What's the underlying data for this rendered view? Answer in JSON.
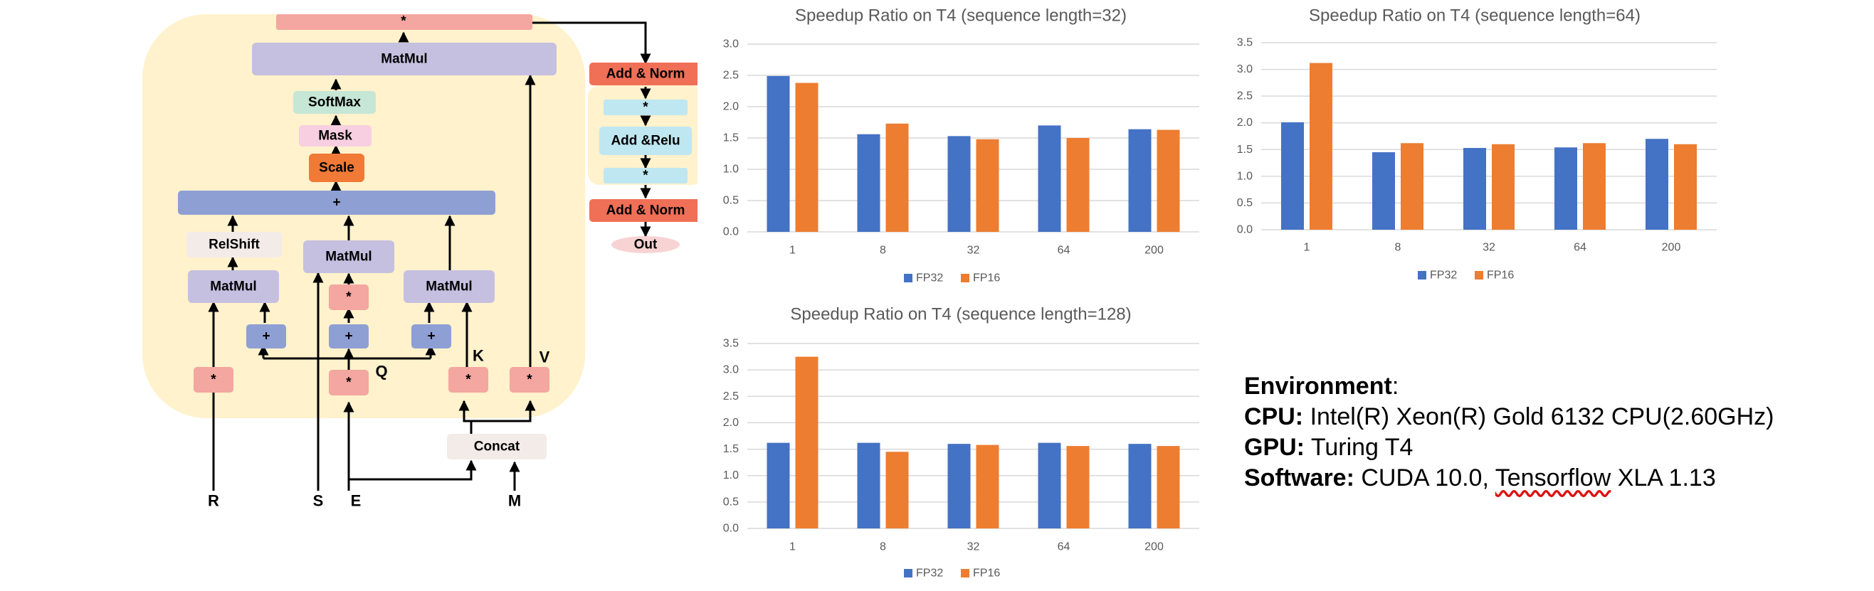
{
  "diagram": {
    "nodes": {
      "top_mul": "*",
      "matmul_top": "MatMul",
      "softmax": "SoftMax",
      "mask": "Mask",
      "scale": "Scale",
      "plus_wide": "+",
      "relshift": "RelShift",
      "matmul_left": "MatMul",
      "matmul_mid": "MatMul",
      "matmul_right": "MatMul",
      "mul_mid": "*",
      "plus_1": "+",
      "plus_2": "+",
      "plus_3": "+",
      "mul_r": "*",
      "mul_e": "*",
      "mul_k": "*",
      "mul_v": "*",
      "concat": "Concat",
      "add_norm_1": "Add & Norm",
      "ff_mul_1": "*",
      "add_relu": "Add &Relu",
      "ff_mul_2": "*",
      "add_norm_2": "Add & Norm",
      "out": "Out"
    },
    "labels": {
      "q": "Q",
      "k": "K",
      "v": "V",
      "r": "R",
      "s": "S",
      "e": "E",
      "m": "M"
    },
    "colors": {
      "panel": "#fff2cc",
      "matmul": "#c5c0e0",
      "plus": "#8e9fd4",
      "pink": "#f4a6a0",
      "softmax": "#c6e6d6",
      "mask": "#f7cfe1",
      "scale": "#f07a36",
      "addnorm": "#f06f57",
      "cyan": "#bfe7f1",
      "grey": "#f3ebe8",
      "out": "#f7d3d3"
    }
  },
  "chart_data": [
    {
      "type": "bar",
      "title": "Speedup Ratio on T4 (sequence length=32)",
      "categories": [
        "1",
        "8",
        "32",
        "64",
        "200"
      ],
      "yticks": [
        "0.0",
        "0.5",
        "1.0",
        "1.5",
        "2.0",
        "2.5",
        "3.0"
      ],
      "ylim": [
        0,
        3.0
      ],
      "grid": true,
      "legend_position": "bottom",
      "series": [
        {
          "name": "FP32",
          "color": "#4472c4",
          "values": [
            2.49,
            1.56,
            1.53,
            1.7,
            1.64
          ]
        },
        {
          "name": "FP16",
          "color": "#ed7d31",
          "values": [
            2.38,
            1.73,
            1.48,
            1.5,
            1.63
          ]
        }
      ]
    },
    {
      "type": "bar",
      "title": "Speedup Ratio on T4 (sequence length=64)",
      "categories": [
        "1",
        "8",
        "32",
        "64",
        "200"
      ],
      "yticks": [
        "0.0",
        "0.5",
        "1.0",
        "1.5",
        "2.0",
        "2.5",
        "3.0",
        "3.5"
      ],
      "ylim": [
        0,
        3.5
      ],
      "grid": true,
      "legend_position": "bottom",
      "series": [
        {
          "name": "FP32",
          "color": "#4472c4",
          "values": [
            2.01,
            1.45,
            1.53,
            1.54,
            1.7
          ]
        },
        {
          "name": "FP16",
          "color": "#ed7d31",
          "values": [
            3.12,
            1.62,
            1.6,
            1.62,
            1.6
          ]
        }
      ]
    },
    {
      "type": "bar",
      "title": "Speedup Ratio on T4 (sequence length=128)",
      "categories": [
        "1",
        "8",
        "32",
        "64",
        "200"
      ],
      "yticks": [
        "0.0",
        "0.5",
        "1.0",
        "1.5",
        "2.0",
        "2.5",
        "3.0",
        "3.5"
      ],
      "ylim": [
        0,
        3.5
      ],
      "grid": true,
      "legend_position": "bottom",
      "series": [
        {
          "name": "FP32",
          "color": "#4472c4",
          "values": [
            1.62,
            1.62,
            1.6,
            1.62,
            1.6
          ]
        },
        {
          "name": "FP16",
          "color": "#ed7d31",
          "values": [
            3.25,
            1.45,
            1.58,
            1.56,
            1.56
          ]
        }
      ]
    }
  ],
  "environment": {
    "heading": "Environment",
    "heading_suffix": ":",
    "cpu_label": "CPU:",
    "cpu_value": "Intel(R) Xeon(R) Gold 6132 CPU(2.60GHz)",
    "gpu_label": "GPU:",
    "gpu_value": "Turing T4",
    "software_label": "Software:",
    "software_value_1": "CUDA 10.0,",
    "software_value_2": "Tensorflow",
    "software_value_3": "XLA 1.13"
  }
}
